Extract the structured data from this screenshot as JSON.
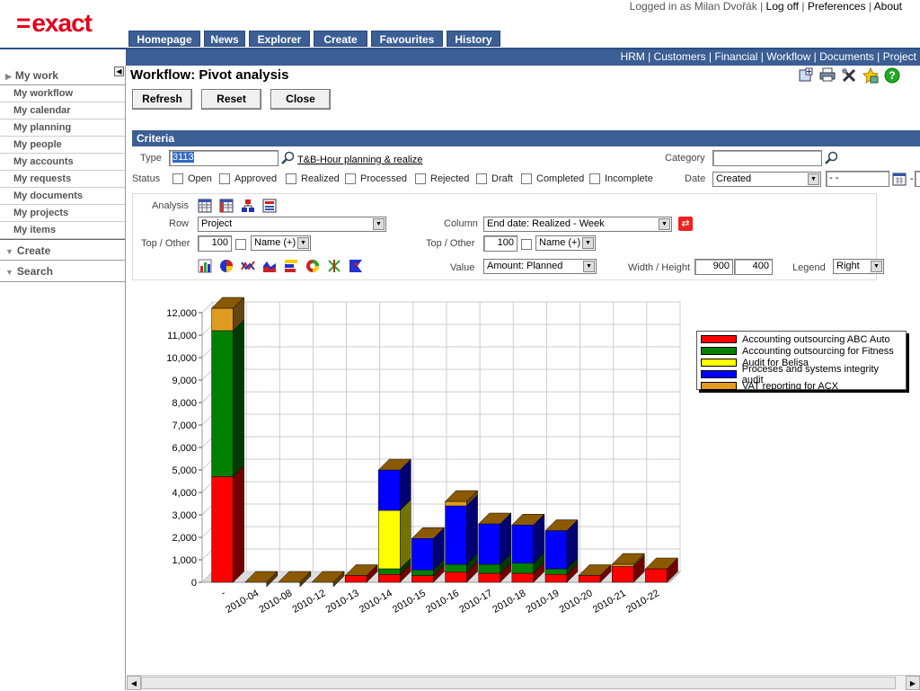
{
  "logo": {
    "mark": "=",
    "text": "exact"
  },
  "user": {
    "logged_in": "Logged in as Milan Dvořák",
    "logoff": "Log off",
    "preferences": "Preferences",
    "about": "About"
  },
  "tabs": [
    "Homepage",
    "News",
    "Explorer",
    "Create",
    "Favourites",
    "History"
  ],
  "subnav": [
    "HRM",
    "Customers",
    "Financial",
    "Workflow",
    "Documents",
    "Project"
  ],
  "sidebar": {
    "my_work": "My work",
    "items": [
      "My workflow",
      "My calendar",
      "My planning",
      "My people",
      "My accounts",
      "My requests",
      "My documents",
      "My projects",
      "My items"
    ],
    "create": "Create",
    "search": "Search"
  },
  "page": {
    "title": "Workflow: Pivot analysis",
    "refresh": "Refresh",
    "reset": "Reset",
    "close": "Close"
  },
  "criteria": {
    "header": "Criteria",
    "type_label": "Type",
    "type_value": "3113",
    "type_link": "T&B-Hour planning & realize",
    "category_label": "Category",
    "status_label": "Status",
    "statuses": [
      "Open",
      "Approved",
      "Realized",
      "Processed",
      "Rejected",
      "Draft",
      "Completed",
      "Incomplete"
    ],
    "date_label": "Date",
    "date_select": "Created",
    "date_from": " -  - ",
    "date_sep": "-"
  },
  "analysis": {
    "analysis_label": "Analysis",
    "row_label": "Row",
    "row_value": "Project",
    "column_label": "Column",
    "column_value": "End date: Realized - Week",
    "top_other_label": "Top / Other",
    "top_value": "100",
    "name_sort": "Name (+)",
    "top_other_label2": "Top / Other",
    "top_value2": "100",
    "name_sort2": "Name (+)",
    "value_label": "Value",
    "value_value": "Amount: Planned",
    "wh_label": "Width / Height",
    "width": "900",
    "height": "400",
    "legend_label": "Legend",
    "legend_value": "Right"
  },
  "colors": {
    "accent": "#3b5e94",
    "brand": "#e3001b"
  },
  "chart_data": {
    "type": "bar",
    "stacked": true,
    "categories": [
      "-",
      "2010-04",
      "2010-08",
      "2010-12",
      "2010-13",
      "2010-14",
      "2010-15",
      "2010-16",
      "2010-17",
      "2010-18",
      "2010-19",
      "2010-20",
      "2010-21",
      "2010-22"
    ],
    "series": [
      {
        "name": "Accounting outsourcing ABC Auto",
        "color": "#ff0000",
        "values": [
          4700,
          0,
          0,
          0,
          300,
          350,
          300,
          450,
          400,
          400,
          350,
          300,
          700,
          600
        ]
      },
      {
        "name": "Accounting outsourcing for Fitness",
        "color": "#008000",
        "values": [
          6500,
          0,
          0,
          0,
          0,
          250,
          250,
          350,
          400,
          450,
          250,
          0,
          0,
          0
        ]
      },
      {
        "name": "Audit for Belisa",
        "color": "#ffff00",
        "values": [
          0,
          0,
          0,
          0,
          0,
          2600,
          0,
          0,
          0,
          0,
          0,
          0,
          0,
          0
        ]
      },
      {
        "name": "Proceses and systems integrity audit",
        "color": "#0000ff",
        "values": [
          0,
          0,
          0,
          0,
          0,
          1800,
          1400,
          2600,
          1800,
          1700,
          1700,
          0,
          0,
          0
        ]
      },
      {
        "name": "VAT reporting for ACX",
        "color": "#e09b21",
        "values": [
          1000,
          0,
          0,
          0,
          0,
          0,
          0,
          200,
          0,
          0,
          0,
          0,
          100,
          0
        ]
      }
    ],
    "ylim": [
      0,
      12000
    ],
    "yticks": [
      "0",
      "1,000",
      "2,000",
      "3,000",
      "4,000",
      "5,000",
      "6,000",
      "7,000",
      "8,000",
      "9,000",
      "10,000",
      "11,000",
      "12,000"
    ],
    "grid": true,
    "legend": "right"
  }
}
